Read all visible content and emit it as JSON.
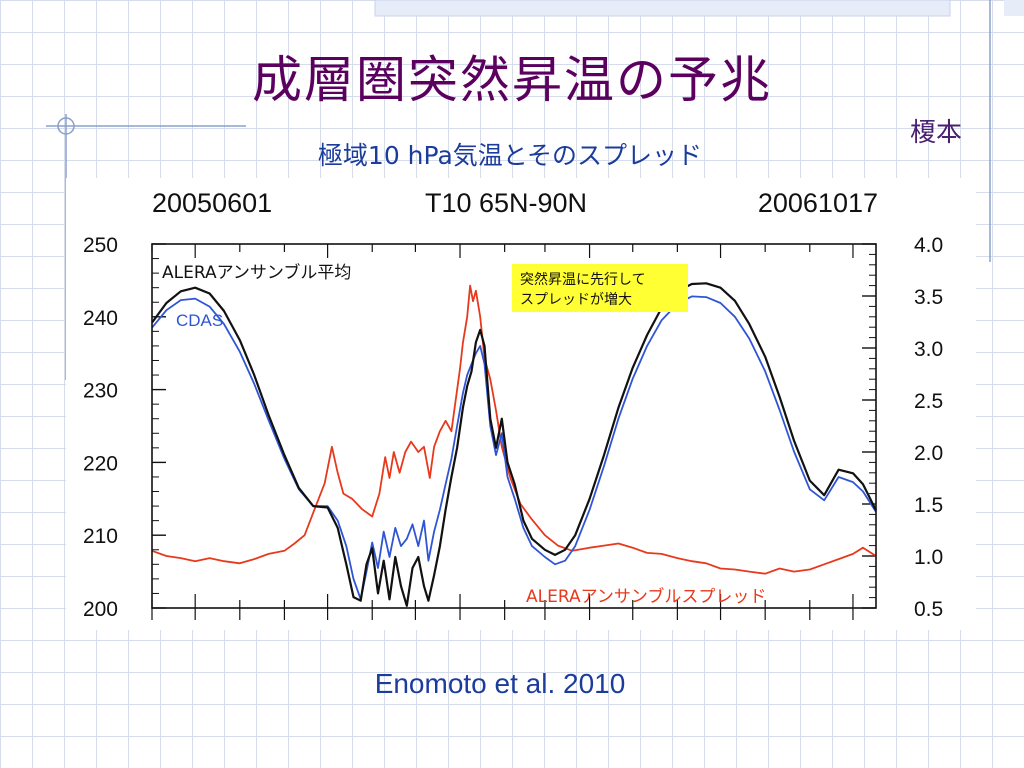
{
  "slide": {
    "title": "成層圏突然昇温の予兆",
    "author": "榎本",
    "subtitle": "極域10 hPa気温とそのスプレッド",
    "citation": "Enomoto et al. 2010"
  },
  "chart_data": {
    "type": "line",
    "header": {
      "left": "20050601",
      "center": "T10 65N-90N",
      "right": "20061017"
    },
    "x_range": [
      "2005-06-01",
      "2006-10-17"
    ],
    "y_left": {
      "ticks": [
        "250",
        "240",
        "230",
        "220",
        "210",
        "200"
      ],
      "range": [
        200,
        250
      ]
    },
    "y_right": {
      "ticks": [
        "4.0",
        "3.5",
        "3.0",
        "2.5",
        "2.0",
        "1.5",
        "1.0",
        "0.5"
      ],
      "range": [
        0.5,
        4.0
      ]
    },
    "grid": false,
    "series": [
      {
        "name": "ALERAアンサンブル平均",
        "axis": "left",
        "color": "#111111",
        "points": [
          [
            "2005-06-01",
            239.2
          ],
          [
            "2005-06-11",
            241.9
          ],
          [
            "2005-06-21",
            243.5
          ],
          [
            "2005-07-01",
            244.0
          ],
          [
            "2005-07-11",
            243.2
          ],
          [
            "2005-07-21",
            240.8
          ],
          [
            "2005-08-01",
            236.8
          ],
          [
            "2005-08-11",
            232.0
          ],
          [
            "2005-08-21",
            226.5
          ],
          [
            "2005-09-01",
            221.0
          ],
          [
            "2005-09-11",
            216.5
          ],
          [
            "2005-09-21",
            214.0
          ],
          [
            "2005-10-01",
            213.8
          ],
          [
            "2005-10-08",
            211.0
          ],
          [
            "2005-10-14",
            206.0
          ],
          [
            "2005-10-19",
            201.5
          ],
          [
            "2005-10-24",
            201.0
          ],
          [
            "2005-10-28",
            206.0
          ],
          [
            "2005-11-01",
            208.2
          ],
          [
            "2005-11-05",
            202.0
          ],
          [
            "2005-11-09",
            206.5
          ],
          [
            "2005-11-13",
            201.2
          ],
          [
            "2005-11-17",
            207.0
          ],
          [
            "2005-11-21",
            203.0
          ],
          [
            "2005-11-25",
            200.3
          ],
          [
            "2005-11-29",
            205.5
          ],
          [
            "2005-12-03",
            207.0
          ],
          [
            "2005-12-07",
            203.0
          ],
          [
            "2005-12-10",
            201.0
          ],
          [
            "2005-12-14",
            204.5
          ],
          [
            "2005-12-18",
            208.5
          ],
          [
            "2005-12-22",
            213.5
          ],
          [
            "2005-12-26",
            218.0
          ],
          [
            "2005-12-30",
            222.0
          ],
          [
            "2006-01-03",
            227.5
          ],
          [
            "2006-01-06",
            230.5
          ],
          [
            "2006-01-09",
            232.5
          ],
          [
            "2006-01-12",
            236.5
          ],
          [
            "2006-01-15",
            238.2
          ],
          [
            "2006-01-18",
            236.0
          ],
          [
            "2006-01-22",
            226.0
          ],
          [
            "2006-01-26",
            222.0
          ],
          [
            "2006-01-30",
            226.0
          ],
          [
            "2006-02-03",
            220.0
          ],
          [
            "2006-02-08",
            217.0
          ],
          [
            "2006-02-14",
            212.0
          ],
          [
            "2006-02-20",
            209.5
          ],
          [
            "2006-03-01",
            208.0
          ],
          [
            "2006-03-08",
            207.3
          ],
          [
            "2006-03-15",
            208.0
          ],
          [
            "2006-03-22",
            210.0
          ],
          [
            "2006-04-01",
            215.0
          ],
          [
            "2006-04-11",
            221.0
          ],
          [
            "2006-04-21",
            227.5
          ],
          [
            "2006-05-01",
            233.0
          ],
          [
            "2006-05-11",
            237.5
          ],
          [
            "2006-05-21",
            241.2
          ],
          [
            "2006-06-01",
            243.5
          ],
          [
            "2006-06-11",
            244.5
          ],
          [
            "2006-06-21",
            244.6
          ],
          [
            "2006-07-01",
            244.0
          ],
          [
            "2006-07-11",
            242.2
          ],
          [
            "2006-07-21",
            239.0
          ],
          [
            "2006-08-01",
            234.5
          ],
          [
            "2006-08-11",
            229.0
          ],
          [
            "2006-08-21",
            223.0
          ],
          [
            "2006-09-01",
            217.5
          ],
          [
            "2006-09-11",
            215.5
          ],
          [
            "2006-09-21",
            219.0
          ],
          [
            "2006-10-01",
            218.5
          ],
          [
            "2006-10-08",
            217.0
          ],
          [
            "2006-10-17",
            213.4
          ]
        ]
      },
      {
        "name": "CDAS",
        "axis": "left",
        "color": "#2f55d4",
        "points": [
          [
            "2005-06-01",
            238.5
          ],
          [
            "2005-06-11",
            240.9
          ],
          [
            "2005-06-21",
            242.3
          ],
          [
            "2005-07-01",
            242.5
          ],
          [
            "2005-07-11",
            241.4
          ],
          [
            "2005-07-21",
            239.0
          ],
          [
            "2005-08-01",
            235.2
          ],
          [
            "2005-08-11",
            230.8
          ],
          [
            "2005-08-21",
            225.8
          ],
          [
            "2005-09-01",
            220.5
          ],
          [
            "2005-09-11",
            216.3
          ],
          [
            "2005-09-21",
            214.0
          ],
          [
            "2005-10-01",
            214.0
          ],
          [
            "2005-10-08",
            212.0
          ],
          [
            "2005-10-14",
            208.5
          ],
          [
            "2005-10-19",
            204.0
          ],
          [
            "2005-10-24",
            201.2
          ],
          [
            "2005-10-28",
            205.0
          ],
          [
            "2005-11-01",
            209.0
          ],
          [
            "2005-11-05",
            205.5
          ],
          [
            "2005-11-09",
            210.5
          ],
          [
            "2005-11-13",
            207.0
          ],
          [
            "2005-11-17",
            211.0
          ],
          [
            "2005-11-21",
            208.5
          ],
          [
            "2005-11-25",
            209.5
          ],
          [
            "2005-11-29",
            211.5
          ],
          [
            "2005-12-03",
            208.5
          ],
          [
            "2005-12-07",
            212.0
          ],
          [
            "2005-12-10",
            206.5
          ],
          [
            "2005-12-14",
            210.5
          ],
          [
            "2005-12-18",
            213.5
          ],
          [
            "2005-12-22",
            217.0
          ],
          [
            "2005-12-26",
            220.5
          ],
          [
            "2005-12-30",
            225.0
          ],
          [
            "2006-01-03",
            229.5
          ],
          [
            "2006-01-06",
            232.0
          ],
          [
            "2006-01-09",
            233.5
          ],
          [
            "2006-01-12",
            235.0
          ],
          [
            "2006-01-15",
            236.0
          ],
          [
            "2006-01-18",
            233.5
          ],
          [
            "2006-01-22",
            225.0
          ],
          [
            "2006-01-26",
            221.0
          ],
          [
            "2006-01-30",
            224.0
          ],
          [
            "2006-02-03",
            218.0
          ],
          [
            "2006-02-08",
            215.0
          ],
          [
            "2006-02-14",
            211.0
          ],
          [
            "2006-02-20",
            208.5
          ],
          [
            "2006-03-01",
            207.0
          ],
          [
            "2006-03-08",
            206.0
          ],
          [
            "2006-03-15",
            206.5
          ],
          [
            "2006-03-22",
            208.5
          ],
          [
            "2006-04-01",
            213.5
          ],
          [
            "2006-04-11",
            219.5
          ],
          [
            "2006-04-21",
            226.0
          ],
          [
            "2006-05-01",
            231.5
          ],
          [
            "2006-05-11",
            236.0
          ],
          [
            "2006-05-21",
            239.5
          ],
          [
            "2006-06-01",
            241.8
          ],
          [
            "2006-06-11",
            242.8
          ],
          [
            "2006-06-21",
            242.7
          ],
          [
            "2006-07-01",
            241.9
          ],
          [
            "2006-07-11",
            240.0
          ],
          [
            "2006-07-21",
            237.0
          ],
          [
            "2006-08-01",
            232.5
          ],
          [
            "2006-08-11",
            227.2
          ],
          [
            "2006-08-21",
            221.5
          ],
          [
            "2006-09-01",
            216.3
          ],
          [
            "2006-09-11",
            214.8
          ],
          [
            "2006-09-21",
            218.0
          ],
          [
            "2006-10-01",
            217.3
          ],
          [
            "2006-10-08",
            216.0
          ],
          [
            "2006-10-17",
            213.2
          ]
        ]
      },
      {
        "name": "ALERAアンサンブルスプレッド",
        "axis": "right",
        "color": "#e8391c",
        "points": [
          [
            "2005-06-01",
            1.05
          ],
          [
            "2005-06-11",
            1.0
          ],
          [
            "2005-06-21",
            0.98
          ],
          [
            "2005-07-01",
            0.95
          ],
          [
            "2005-07-11",
            0.98
          ],
          [
            "2005-07-21",
            0.95
          ],
          [
            "2005-08-01",
            0.93
          ],
          [
            "2005-08-11",
            0.97
          ],
          [
            "2005-08-21",
            1.02
          ],
          [
            "2005-09-01",
            1.05
          ],
          [
            "2005-09-08",
            1.12
          ],
          [
            "2005-09-15",
            1.2
          ],
          [
            "2005-09-22",
            1.45
          ],
          [
            "2005-09-29",
            1.7
          ],
          [
            "2005-10-04",
            2.05
          ],
          [
            "2005-10-08",
            1.8
          ],
          [
            "2005-10-12",
            1.6
          ],
          [
            "2005-10-18",
            1.55
          ],
          [
            "2005-10-25",
            1.45
          ],
          [
            "2005-11-01",
            1.38
          ],
          [
            "2005-11-06",
            1.6
          ],
          [
            "2005-11-10",
            1.95
          ],
          [
            "2005-11-13",
            1.75
          ],
          [
            "2005-11-16",
            2.0
          ],
          [
            "2005-11-20",
            1.8
          ],
          [
            "2005-11-24",
            2.0
          ],
          [
            "2005-11-28",
            2.1
          ],
          [
            "2005-12-03",
            2.0
          ],
          [
            "2005-12-07",
            2.05
          ],
          [
            "2005-12-11",
            1.75
          ],
          [
            "2005-12-14",
            2.05
          ],
          [
            "2005-12-18",
            2.2
          ],
          [
            "2005-12-22",
            2.3
          ],
          [
            "2005-12-26",
            2.2
          ],
          [
            "2005-12-29",
            2.5
          ],
          [
            "2006-01-01",
            2.8
          ],
          [
            "2006-01-03",
            3.05
          ],
          [
            "2006-01-06",
            3.3
          ],
          [
            "2006-01-08",
            3.6
          ],
          [
            "2006-01-10",
            3.45
          ],
          [
            "2006-01-12",
            3.55
          ],
          [
            "2006-01-15",
            3.3
          ],
          [
            "2006-01-18",
            2.9
          ],
          [
            "2006-01-22",
            2.7
          ],
          [
            "2006-01-26",
            2.4
          ],
          [
            "2006-01-30",
            2.05
          ],
          [
            "2006-02-05",
            1.75
          ],
          [
            "2006-02-12",
            1.5
          ],
          [
            "2006-02-20",
            1.35
          ],
          [
            "2006-03-01",
            1.2
          ],
          [
            "2006-03-10",
            1.1
          ],
          [
            "2006-03-20",
            1.05
          ],
          [
            "2006-04-01",
            1.08
          ],
          [
            "2006-04-11",
            1.1
          ],
          [
            "2006-04-21",
            1.12
          ],
          [
            "2006-05-01",
            1.08
          ],
          [
            "2006-05-11",
            1.03
          ],
          [
            "2006-05-21",
            1.02
          ],
          [
            "2006-06-01",
            0.98
          ],
          [
            "2006-06-11",
            0.95
          ],
          [
            "2006-06-21",
            0.93
          ],
          [
            "2006-07-01",
            0.88
          ],
          [
            "2006-07-11",
            0.87
          ],
          [
            "2006-07-21",
            0.85
          ],
          [
            "2006-08-01",
            0.83
          ],
          [
            "2006-08-11",
            0.88
          ],
          [
            "2006-08-21",
            0.85
          ],
          [
            "2006-09-01",
            0.87
          ],
          [
            "2006-09-11",
            0.92
          ],
          [
            "2006-09-21",
            0.97
          ],
          [
            "2006-10-01",
            1.02
          ],
          [
            "2006-10-08",
            1.08
          ],
          [
            "2006-10-17",
            1.0
          ]
        ]
      }
    ],
    "labels": {
      "ensemble_mean": "ALERAアンサンブル平均",
      "cdas": "CDAS",
      "spread": "ALERAアンサンブルスプレッド",
      "spread_prefix": "ALERA",
      "spread_suffix": "アンサンブルスプレッド",
      "mean_prefix": "ALERA",
      "mean_suffix": "アンサンブル平均"
    },
    "annotation": {
      "line1": "突然昇温に先行して",
      "line2": "スプレッドが増大",
      "background": "#ffff33"
    }
  }
}
